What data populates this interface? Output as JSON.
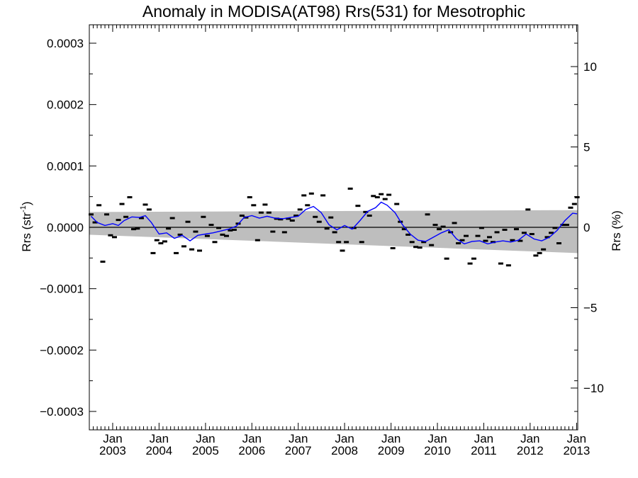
{
  "chart_data": {
    "type": "scatter",
    "title": "Anomaly in MODISA(AT98) Rrs(531) for Mesotrophic",
    "ylabel_left": "Rrs (str",
    "ylabel_left_sup": "-1",
    "ylabel_left_close": ")",
    "ylabel_right": "Rrs (%)",
    "xlim": [
      "2002-07-01",
      "2013-01-10"
    ],
    "ylim_left": [
      -0.00033,
      0.00033
    ],
    "ylim_right": [
      -12.6,
      12.6
    ],
    "yticks_left": [
      {
        "v": 0.0003,
        "label": "0.0003"
      },
      {
        "v": 0.0002,
        "label": "0.0002"
      },
      {
        "v": 0.0001,
        "label": "0.0001"
      },
      {
        "v": 0,
        "label": "0.0000"
      },
      {
        "v": -0.0001,
        "label": "−0.0001"
      },
      {
        "v": -0.0002,
        "label": "−0.0002"
      },
      {
        "v": -0.0003,
        "label": "−0.0003"
      }
    ],
    "yticks_right": [
      {
        "v": 10,
        "label": "10"
      },
      {
        "v": 5,
        "label": "5"
      },
      {
        "v": 0,
        "label": "0"
      },
      {
        "v": -5,
        "label": "−5"
      },
      {
        "v": -10,
        "label": "−10"
      }
    ],
    "xticks": [
      {
        "date": "2003-01-01",
        "month": "Jan",
        "year": "2003"
      },
      {
        "date": "2004-01-01",
        "month": "Jan",
        "year": "2004"
      },
      {
        "date": "2005-01-01",
        "month": "Jan",
        "year": "2005"
      },
      {
        "date": "2006-01-01",
        "month": "Jan",
        "year": "2006"
      },
      {
        "date": "2007-01-01",
        "month": "Jan",
        "year": "2007"
      },
      {
        "date": "2008-01-01",
        "month": "Jan",
        "year": "2008"
      },
      {
        "date": "2009-01-01",
        "month": "Jan",
        "year": "2009"
      },
      {
        "date": "2010-01-01",
        "month": "Jan",
        "year": "2010"
      },
      {
        "date": "2011-01-01",
        "month": "Jan",
        "year": "2011"
      },
      {
        "date": "2012-01-01",
        "month": "Jan",
        "year": "2012"
      },
      {
        "date": "2013-01-01",
        "month": "Jan",
        "year": "2013"
      }
    ],
    "band": {
      "start": "2002-07-01",
      "end": "2013-01-10",
      "upper": [
        2.5e-05,
        2.8e-05
      ],
      "lower": [
        -1.2e-05,
        -4.2e-05
      ]
    },
    "colors": {
      "band": "#bebebe",
      "smooth": "#0000ff",
      "points": "#000000",
      "zero_line": "#000000"
    },
    "series": [
      {
        "kind": "monthly",
        "points": [
          [
            "2002-07-15",
            2.1e-05
          ],
          [
            "2002-08-15",
            8e-06
          ],
          [
            "2002-09-15",
            3.6e-05
          ],
          [
            "2002-10-15",
            -5.6e-05
          ],
          [
            "2002-11-15",
            2.1e-05
          ],
          [
            "2002-12-15",
            -1.3e-05
          ],
          [
            "2003-01-15",
            -1.6e-05
          ],
          [
            "2003-02-15",
            1.2e-05
          ],
          [
            "2003-03-15",
            3.8e-05
          ],
          [
            "2003-04-15",
            1.7e-05
          ],
          [
            "2003-05-15",
            4.9e-05
          ],
          [
            "2003-06-15",
            -3e-06
          ],
          [
            "2003-07-15",
            -2e-06
          ],
          [
            "2003-08-15",
            1.5e-05
          ],
          [
            "2003-09-15",
            3.7e-05
          ],
          [
            "2003-10-15",
            2.9e-05
          ],
          [
            "2003-11-15",
            -4.2e-05
          ],
          [
            "2003-12-15",
            -2.1e-05
          ],
          [
            "2004-01-15",
            -2.6e-05
          ],
          [
            "2004-02-15",
            -2.3e-05
          ],
          [
            "2004-03-15",
            -2e-06
          ],
          [
            "2004-04-15",
            1.5e-05
          ],
          [
            "2004-05-15",
            -4.2e-05
          ],
          [
            "2004-06-15",
            -1.2e-05
          ],
          [
            "2004-07-15",
            -3.1e-05
          ],
          [
            "2004-08-15",
            9e-06
          ],
          [
            "2004-09-15",
            -3.6e-05
          ],
          [
            "2004-10-15",
            -7e-06
          ],
          [
            "2004-11-15",
            -3.8e-05
          ],
          [
            "2004-12-15",
            1.7e-05
          ],
          [
            "2005-01-15",
            -1.4e-05
          ],
          [
            "2005-02-15",
            4e-06
          ],
          [
            "2005-03-15",
            -2.4e-05
          ],
          [
            "2005-04-15",
            -1e-06
          ],
          [
            "2005-05-15",
            -1.2e-05
          ],
          [
            "2005-06-15",
            -1.4e-05
          ],
          [
            "2005-07-15",
            -5e-06
          ],
          [
            "2005-08-15",
            -4e-06
          ],
          [
            "2005-09-15",
            6e-06
          ],
          [
            "2005-10-15",
            1.9e-05
          ],
          [
            "2005-11-15",
            1.6e-05
          ],
          [
            "2005-12-15",
            4.9e-05
          ],
          [
            "2006-01-15",
            3.6e-05
          ],
          [
            "2006-02-15",
            -2.1e-05
          ],
          [
            "2006-03-15",
            2.4e-05
          ],
          [
            "2006-04-15",
            3.7e-05
          ],
          [
            "2006-05-15",
            2.4e-05
          ],
          [
            "2006-06-15",
            -7e-06
          ],
          [
            "2006-07-15",
            1.4e-05
          ],
          [
            "2006-08-15",
            1.3e-05
          ],
          [
            "2006-09-15",
            -8e-06
          ],
          [
            "2006-10-15",
            1.4e-05
          ],
          [
            "2006-11-15",
            1.1e-05
          ],
          [
            "2006-12-15",
            1.9e-05
          ],
          [
            "2007-01-15",
            2.9e-05
          ],
          [
            "2007-02-15",
            5.2e-05
          ],
          [
            "2007-03-15",
            3.6e-05
          ],
          [
            "2007-04-15",
            5.5e-05
          ],
          [
            "2007-05-15",
            1.7e-05
          ],
          [
            "2007-06-15",
            9e-06
          ],
          [
            "2007-07-15",
            5.2e-05
          ],
          [
            "2007-08-15",
            -2e-06
          ],
          [
            "2007-09-15",
            1.6e-05
          ],
          [
            "2007-10-15",
            -8e-06
          ],
          [
            "2007-11-15",
            -2.4e-05
          ],
          [
            "2007-12-15",
            -3.8e-05
          ],
          [
            "2008-01-15",
            -2.4e-05
          ],
          [
            "2008-02-15",
            6.3e-05
          ],
          [
            "2008-03-15",
            -1e-06
          ],
          [
            "2008-04-15",
            3.5e-05
          ],
          [
            "2008-05-15",
            -2.4e-05
          ],
          [
            "2008-06-15",
            2.5e-05
          ],
          [
            "2008-07-15",
            1.9e-05
          ],
          [
            "2008-08-15",
            5.1e-05
          ],
          [
            "2008-09-15",
            4.9e-05
          ],
          [
            "2008-10-15",
            5.4e-05
          ],
          [
            "2008-11-15",
            4.6e-05
          ],
          [
            "2008-12-15",
            5.3e-05
          ],
          [
            "2009-01-15",
            -3.4e-05
          ],
          [
            "2009-02-15",
            3.8e-05
          ],
          [
            "2009-03-15",
            9e-06
          ],
          [
            "2009-04-15",
            -3e-06
          ],
          [
            "2009-05-15",
            -1.2e-05
          ],
          [
            "2009-06-15",
            -2.4e-05
          ],
          [
            "2009-07-15",
            -3.2e-05
          ],
          [
            "2009-08-15",
            -3.3e-05
          ],
          [
            "2009-09-15",
            -2.4e-05
          ],
          [
            "2009-10-15",
            2.1e-05
          ],
          [
            "2009-11-15",
            -2.9e-05
          ],
          [
            "2009-12-15",
            4e-06
          ],
          [
            "2010-01-15",
            -3e-06
          ],
          [
            "2010-02-15",
            1e-06
          ],
          [
            "2010-03-15",
            -5.1e-05
          ],
          [
            "2010-04-15",
            -8e-06
          ],
          [
            "2010-05-15",
            7e-06
          ],
          [
            "2010-06-15",
            -2.6e-05
          ],
          [
            "2010-07-15",
            -2.1e-05
          ],
          [
            "2010-08-15",
            -1.4e-05
          ],
          [
            "2010-09-15",
            -5.9e-05
          ],
          [
            "2010-10-15",
            -5.1e-05
          ],
          [
            "2010-11-15",
            -1.4e-05
          ],
          [
            "2010-12-15",
            -1e-06
          ],
          [
            "2011-01-15",
            -2.2e-05
          ],
          [
            "2011-02-15",
            -1.6e-05
          ],
          [
            "2011-03-15",
            -2.4e-05
          ],
          [
            "2011-04-15",
            -8e-06
          ],
          [
            "2011-05-15",
            -5.9e-05
          ],
          [
            "2011-06-15",
            -4e-06
          ],
          [
            "2011-07-15",
            -6.2e-05
          ],
          [
            "2011-08-15",
            -2.1e-05
          ],
          [
            "2011-09-15",
            -3e-06
          ],
          [
            "2011-10-15",
            -2.2e-05
          ],
          [
            "2011-11-15",
            -9e-06
          ],
          [
            "2011-12-15",
            2.9e-05
          ],
          [
            "2012-01-15",
            -1.1e-05
          ],
          [
            "2012-02-15",
            -4.6e-05
          ],
          [
            "2012-03-15",
            -4.2e-05
          ],
          [
            "2012-04-15",
            -3.6e-05
          ],
          [
            "2012-05-15",
            -1.6e-05
          ],
          [
            "2012-06-15",
            -9e-06
          ],
          [
            "2012-07-15",
            -1e-06
          ],
          [
            "2012-08-15",
            -2.6e-05
          ],
          [
            "2012-09-15",
            4e-06
          ],
          [
            "2012-10-15",
            4e-06
          ],
          [
            "2012-11-15",
            3.2e-05
          ],
          [
            "2012-12-15",
            3.8e-05
          ],
          [
            "2013-01-05",
            4.9e-05
          ]
        ]
      },
      {
        "kind": "smoothed",
        "points": [
          [
            "2002-07-15",
            1.8e-05
          ],
          [
            "2002-09-01",
            8e-06
          ],
          [
            "2002-11-01",
            3e-06
          ],
          [
            "2003-01-01",
            6e-06
          ],
          [
            "2003-02-15",
            3e-06
          ],
          [
            "2003-04-01",
            1.1e-05
          ],
          [
            "2003-06-01",
            1.7e-05
          ],
          [
            "2003-08-01",
            1.6e-05
          ],
          [
            "2003-09-15",
            1.9e-05
          ],
          [
            "2003-11-01",
            8e-06
          ],
          [
            "2004-01-01",
            -1.1e-05
          ],
          [
            "2004-03-01",
            -9e-06
          ],
          [
            "2004-05-01",
            -1.8e-05
          ],
          [
            "2004-07-01",
            -1.3e-05
          ],
          [
            "2004-09-01",
            -2.2e-05
          ],
          [
            "2004-11-01",
            -1.3e-05
          ],
          [
            "2005-01-01",
            -1.1e-05
          ],
          [
            "2005-03-01",
            -9e-06
          ],
          [
            "2005-05-01",
            -6e-06
          ],
          [
            "2005-07-01",
            -3e-06
          ],
          [
            "2005-09-01",
            2e-06
          ],
          [
            "2005-11-01",
            1.6e-05
          ],
          [
            "2006-01-01",
            1.9e-05
          ],
          [
            "2006-03-01",
            1.5e-05
          ],
          [
            "2006-05-01",
            1.8e-05
          ],
          [
            "2006-07-01",
            1.5e-05
          ],
          [
            "2006-09-01",
            1.4e-05
          ],
          [
            "2006-11-01",
            1.6e-05
          ],
          [
            "2007-01-01",
            1.8e-05
          ],
          [
            "2007-03-01",
            2.9e-05
          ],
          [
            "2007-05-01",
            3.4e-05
          ],
          [
            "2007-07-01",
            2.4e-05
          ],
          [
            "2007-09-01",
            4e-06
          ],
          [
            "2007-11-01",
            -4e-06
          ],
          [
            "2008-01-01",
            3e-06
          ],
          [
            "2008-03-01",
            -3e-06
          ],
          [
            "2008-05-01",
            1.1e-05
          ],
          [
            "2008-07-01",
            2.6e-05
          ],
          [
            "2008-09-01",
            3.2e-05
          ],
          [
            "2008-10-15",
            4.1e-05
          ],
          [
            "2008-12-01",
            3.6e-05
          ],
          [
            "2009-02-01",
            2.4e-05
          ],
          [
            "2009-04-01",
            4e-06
          ],
          [
            "2009-06-01",
            -1.1e-05
          ],
          [
            "2009-08-01",
            -2.1e-05
          ],
          [
            "2009-10-01",
            -2.3e-05
          ],
          [
            "2009-12-01",
            -1.6e-05
          ],
          [
            "2010-02-01",
            -9e-06
          ],
          [
            "2010-04-01",
            -4e-06
          ],
          [
            "2010-06-01",
            -1.9e-05
          ],
          [
            "2010-08-01",
            -2.7e-05
          ],
          [
            "2010-10-01",
            -2.3e-05
          ],
          [
            "2010-12-01",
            -2.2e-05
          ],
          [
            "2011-02-01",
            -2.7e-05
          ],
          [
            "2011-04-01",
            -2.4e-05
          ],
          [
            "2011-06-01",
            -2.2e-05
          ],
          [
            "2011-08-01",
            -2.4e-05
          ],
          [
            "2011-10-01",
            -2.1e-05
          ],
          [
            "2011-12-01",
            -1.1e-05
          ],
          [
            "2012-02-01",
            -1.9e-05
          ],
          [
            "2012-04-01",
            -2.2e-05
          ],
          [
            "2012-06-01",
            -1.6e-05
          ],
          [
            "2012-08-01",
            -5e-06
          ],
          [
            "2012-10-01",
            1.1e-05
          ],
          [
            "2012-12-01",
            2.3e-05
          ],
          [
            "2013-01-05",
            2.2e-05
          ]
        ]
      }
    ]
  }
}
